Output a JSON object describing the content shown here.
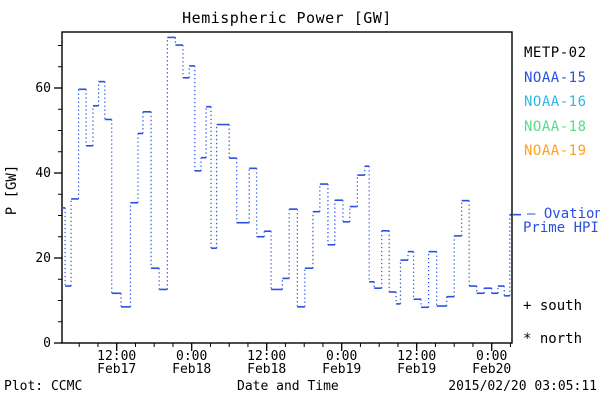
{
  "title": "Hemispheric Power [GW]",
  "y_axis": {
    "label": "P [GW]",
    "major_ticks": [
      0,
      20,
      40,
      60
    ],
    "minor_step": 5,
    "max": 73
  },
  "x_axis": {
    "title": "Date and Time",
    "minor_step_hours": 3,
    "t_start": 3.2,
    "t_end": 75.2,
    "major_ticks": [
      {
        "t": 12,
        "time": "12:00",
        "date": "Feb17"
      },
      {
        "t": 24,
        "time": "0:00",
        "date": "Feb18"
      },
      {
        "t": 36,
        "time": "12:00",
        "date": "Feb18"
      },
      {
        "t": 48,
        "time": "0:00",
        "date": "Feb19"
      },
      {
        "t": 60,
        "time": "12:00",
        "date": "Feb19"
      },
      {
        "t": 72,
        "time": "0:00",
        "date": "Feb20"
      }
    ]
  },
  "legend": {
    "items": [
      {
        "label": "METP-02",
        "color": "#000000"
      },
      {
        "label": "NOAA-15",
        "color": "#2a50e0"
      },
      {
        "label": "NOAA-16",
        "color": "#30b8e8"
      },
      {
        "label": "NOAA-18",
        "color": "#58dc8c"
      },
      {
        "label": "NOAA-19",
        "color": "#ffa020"
      }
    ]
  },
  "annotations": {
    "ovation_line1": "– Ovation",
    "ovation_line2": "Prime HPI",
    "south": "+ south",
    "north": "* north"
  },
  "footer": {
    "left": "Plot: CCMC",
    "right": "2015/02/20 03:05:11"
  },
  "chart_data": {
    "type": "line",
    "style": "staircase: solid horizontal segments joined by dotted vertical connectors",
    "title": "Hemispheric Power [GW]",
    "xlabel": "Date and Time",
    "ylabel": "P [GW]",
    "series_name": "NOAA-15 Hemispheric Power Index",
    "series_color": "#2a50e0",
    "unit": "GW",
    "ylim": [
      0,
      73
    ],
    "x_unit": "hours since 2015-02-17 00:00 UTC",
    "xlim": [
      3.2,
      75.2
    ],
    "grid": false,
    "legend_position": "right outside",
    "hpi_marker_value": 30.2,
    "steps": [
      [
        3.2,
        3.75,
        31.8
      ],
      [
        3.75,
        4.7,
        13.4
      ],
      [
        4.7,
        5.9,
        33.9
      ],
      [
        5.9,
        7.1,
        59.7
      ],
      [
        7.1,
        8.2,
        46.4
      ],
      [
        8.2,
        9.1,
        55.8
      ],
      [
        9.1,
        10.1,
        61.5
      ],
      [
        10.1,
        11.2,
        52.6
      ],
      [
        11.2,
        12.7,
        11.7
      ],
      [
        12.7,
        14.2,
        8.5
      ],
      [
        14.2,
        15.4,
        33.0
      ],
      [
        15.4,
        16.2,
        49.3
      ],
      [
        16.2,
        17.5,
        54.4
      ],
      [
        17.5,
        18.8,
        17.6
      ],
      [
        18.8,
        20.1,
        12.6
      ],
      [
        20.1,
        21.4,
        71.9
      ],
      [
        21.4,
        22.6,
        70.1
      ],
      [
        22.6,
        23.6,
        62.4
      ],
      [
        23.6,
        24.5,
        65.2
      ],
      [
        24.5,
        25.5,
        40.5
      ],
      [
        25.5,
        26.3,
        43.6
      ],
      [
        26.3,
        27.1,
        55.6
      ],
      [
        27.1,
        28.0,
        22.3
      ],
      [
        28.0,
        30.0,
        51.4
      ],
      [
        30.0,
        31.2,
        43.5
      ],
      [
        31.2,
        33.2,
        28.3
      ],
      [
        33.2,
        34.4,
        41.1
      ],
      [
        34.4,
        35.6,
        25.0
      ],
      [
        35.6,
        36.7,
        26.3
      ],
      [
        36.7,
        38.5,
        12.6
      ],
      [
        38.5,
        39.6,
        15.2
      ],
      [
        39.6,
        40.9,
        31.5
      ],
      [
        40.9,
        42.1,
        8.5
      ],
      [
        42.1,
        43.4,
        17.6
      ],
      [
        43.4,
        44.5,
        30.9
      ],
      [
        44.5,
        45.8,
        37.4
      ],
      [
        45.8,
        46.9,
        23.1
      ],
      [
        46.9,
        48.2,
        33.6
      ],
      [
        48.2,
        49.3,
        28.5
      ],
      [
        49.3,
        50.5,
        32.1
      ],
      [
        50.5,
        51.7,
        39.5
      ],
      [
        51.7,
        52.4,
        41.6
      ],
      [
        52.4,
        53.2,
        14.4
      ],
      [
        53.2,
        54.4,
        12.9
      ],
      [
        54.4,
        55.6,
        26.4
      ],
      [
        55.6,
        56.7,
        12.0
      ],
      [
        56.7,
        57.4,
        9.2
      ],
      [
        57.4,
        58.6,
        19.5
      ],
      [
        58.6,
        59.5,
        21.5
      ],
      [
        59.5,
        60.7,
        10.3
      ],
      [
        60.7,
        61.9,
        8.4
      ],
      [
        61.9,
        63.2,
        21.5
      ],
      [
        63.2,
        64.8,
        8.7
      ],
      [
        64.8,
        66.0,
        10.9
      ],
      [
        66.0,
        67.2,
        25.2
      ],
      [
        67.2,
        68.4,
        33.5
      ],
      [
        68.4,
        69.6,
        13.4
      ],
      [
        69.6,
        70.8,
        11.7
      ],
      [
        70.8,
        72.0,
        12.9
      ],
      [
        72.0,
        73.0,
        11.7
      ],
      [
        73.0,
        74.0,
        13.4
      ],
      [
        74.0,
        74.9,
        11.1
      ],
      [
        74.9,
        75.2,
        30.2
      ]
    ]
  }
}
